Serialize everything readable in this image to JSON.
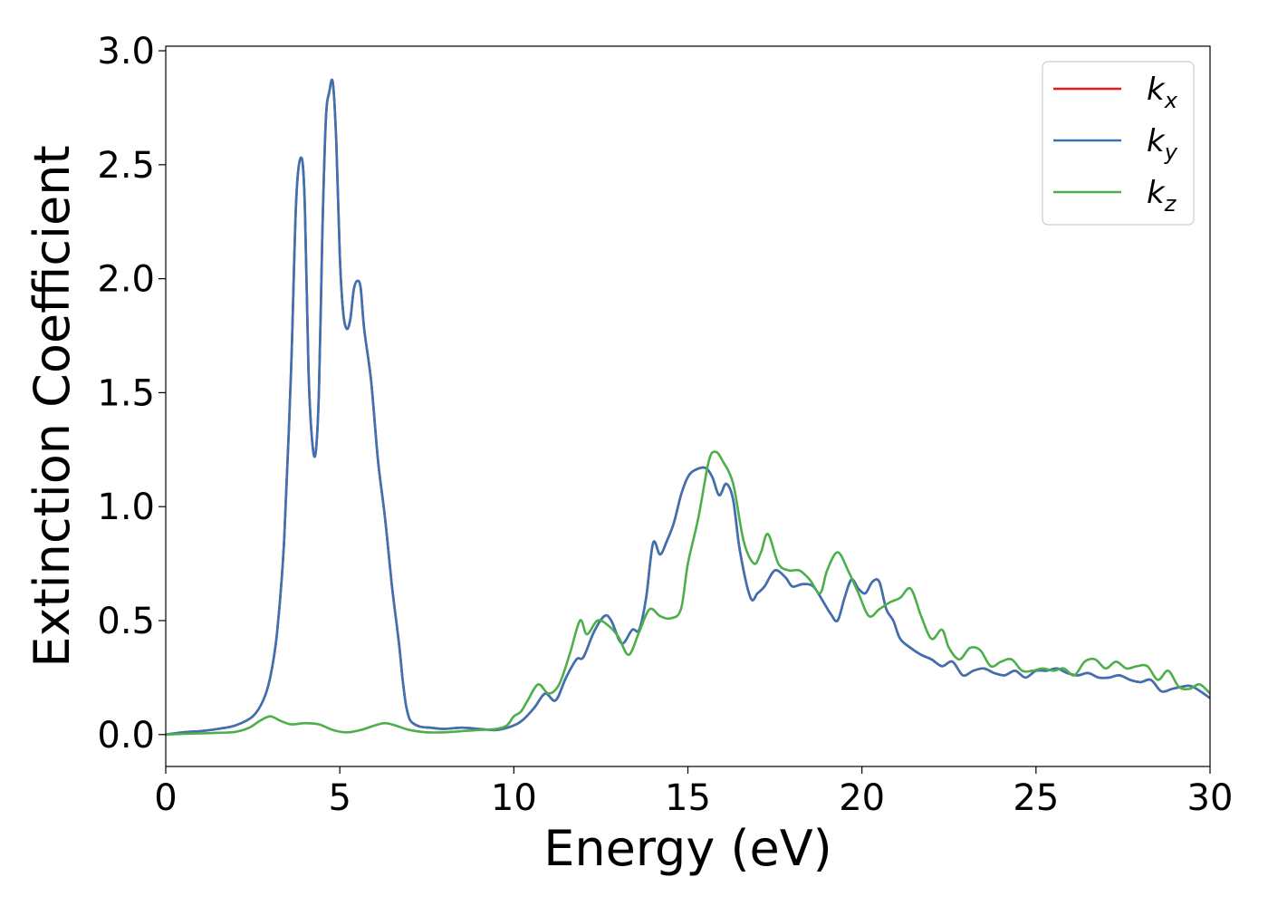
{
  "chart_data": {
    "type": "line",
    "title": "",
    "xlabel": "Energy (eV)",
    "ylabel": "Extinction Coefficient",
    "xlim": [
      0,
      30
    ],
    "ylim": [
      -0.14,
      3.02
    ],
    "xticks": [
      0,
      5,
      10,
      15,
      20,
      25,
      30
    ],
    "xtick_labels": [
      "0",
      "5",
      "10",
      "15",
      "20",
      "25",
      "30"
    ],
    "yticks": [
      0.0,
      0.5,
      1.0,
      1.5,
      2.0,
      2.5,
      3.0
    ],
    "ytick_labels": [
      "0.0",
      "0.5",
      "1.0",
      "1.5",
      "2.0",
      "2.5",
      "3.0"
    ],
    "grid": false,
    "legend_position": "top-right",
    "series": [
      {
        "name": "k",
        "subscript": "x",
        "color": "#e41a1c",
        "x": [
          0,
          0.5,
          1,
          1.5,
          2,
          2.5,
          2.8,
          3,
          3.2,
          3.4,
          3.6,
          3.75,
          3.9,
          4.0,
          4.1,
          4.2,
          4.3,
          4.4,
          4.5,
          4.6,
          4.7,
          4.8,
          4.9,
          5.0,
          5.1,
          5.2,
          5.3,
          5.4,
          5.5,
          5.6,
          5.7,
          5.9,
          6.1,
          6.3,
          6.5,
          6.7,
          6.8,
          6.9,
          7.0,
          7.1,
          7.3,
          7.6,
          8,
          8.5,
          9,
          9.5,
          10,
          10.3,
          10.6,
          10.9,
          11.2,
          11.5,
          11.8,
          12.0,
          12.3,
          12.6,
          12.8,
          13.1,
          13.4,
          13.6,
          13.8,
          14.0,
          14.2,
          14.4,
          14.6,
          14.8,
          15.0,
          15.2,
          15.5,
          15.7,
          15.9,
          16.1,
          16.3,
          16.5,
          16.8,
          17.0,
          17.2,
          17.5,
          17.8,
          18.0,
          18.3,
          18.6,
          18.9,
          19.1,
          19.3,
          19.5,
          19.7,
          19.9,
          20.1,
          20.3,
          20.5,
          20.7,
          20.9,
          21.1,
          21.4,
          21.7,
          22.0,
          22.3,
          22.6,
          22.9,
          23.2,
          23.5,
          23.8,
          24.1,
          24.4,
          24.7,
          25.0,
          25.3,
          25.6,
          25.9,
          26.2,
          26.5,
          26.8,
          27.1,
          27.4,
          27.7,
          28.0,
          28.3,
          28.6,
          28.9,
          29.2,
          29.5,
          30
        ],
        "y": [
          0,
          0.01,
          0.015,
          0.025,
          0.04,
          0.08,
          0.15,
          0.25,
          0.45,
          0.85,
          1.6,
          2.35,
          2.53,
          2.3,
          1.6,
          1.3,
          1.23,
          1.5,
          2.2,
          2.7,
          2.82,
          2.86,
          2.6,
          2.1,
          1.85,
          1.78,
          1.82,
          1.95,
          1.99,
          1.96,
          1.78,
          1.55,
          1.2,
          0.95,
          0.65,
          0.4,
          0.25,
          0.13,
          0.07,
          0.05,
          0.035,
          0.03,
          0.025,
          0.03,
          0.025,
          0.02,
          0.04,
          0.07,
          0.12,
          0.18,
          0.15,
          0.25,
          0.33,
          0.34,
          0.45,
          0.52,
          0.5,
          0.4,
          0.46,
          0.46,
          0.6,
          0.84,
          0.79,
          0.85,
          0.93,
          1.05,
          1.13,
          1.16,
          1.17,
          1.13,
          1.05,
          1.1,
          1.03,
          0.8,
          0.6,
          0.62,
          0.65,
          0.72,
          0.69,
          0.65,
          0.66,
          0.65,
          0.58,
          0.53,
          0.5,
          0.6,
          0.68,
          0.64,
          0.62,
          0.67,
          0.67,
          0.55,
          0.5,
          0.42,
          0.38,
          0.35,
          0.33,
          0.3,
          0.32,
          0.26,
          0.28,
          0.29,
          0.27,
          0.26,
          0.28,
          0.25,
          0.28,
          0.28,
          0.29,
          0.27,
          0.26,
          0.27,
          0.25,
          0.25,
          0.26,
          0.24,
          0.23,
          0.24,
          0.19,
          0.2,
          0.21,
          0.21,
          0.16
        ]
      },
      {
        "name": "k",
        "subscript": "y",
        "color": "#3b72b4",
        "x": [
          0,
          0.5,
          1,
          1.5,
          2,
          2.5,
          2.8,
          3,
          3.2,
          3.4,
          3.6,
          3.75,
          3.9,
          4.0,
          4.1,
          4.2,
          4.3,
          4.4,
          4.5,
          4.6,
          4.7,
          4.8,
          4.9,
          5.0,
          5.1,
          5.2,
          5.3,
          5.4,
          5.5,
          5.6,
          5.7,
          5.9,
          6.1,
          6.3,
          6.5,
          6.7,
          6.8,
          6.9,
          7.0,
          7.1,
          7.3,
          7.6,
          8,
          8.5,
          9,
          9.5,
          10,
          10.3,
          10.6,
          10.9,
          11.2,
          11.5,
          11.8,
          12.0,
          12.3,
          12.6,
          12.8,
          13.1,
          13.4,
          13.6,
          13.8,
          14.0,
          14.2,
          14.4,
          14.6,
          14.8,
          15.0,
          15.2,
          15.5,
          15.7,
          15.9,
          16.1,
          16.3,
          16.5,
          16.8,
          17.0,
          17.2,
          17.5,
          17.8,
          18.0,
          18.3,
          18.6,
          18.9,
          19.1,
          19.3,
          19.5,
          19.7,
          19.9,
          20.1,
          20.3,
          20.5,
          20.7,
          20.9,
          21.1,
          21.4,
          21.7,
          22.0,
          22.3,
          22.6,
          22.9,
          23.2,
          23.5,
          23.8,
          24.1,
          24.4,
          24.7,
          25.0,
          25.3,
          25.6,
          25.9,
          26.2,
          26.5,
          26.8,
          27.1,
          27.4,
          27.7,
          28.0,
          28.3,
          28.6,
          28.9,
          29.2,
          29.5,
          30
        ],
        "y": [
          0,
          0.01,
          0.015,
          0.025,
          0.04,
          0.08,
          0.15,
          0.25,
          0.45,
          0.85,
          1.6,
          2.35,
          2.53,
          2.3,
          1.6,
          1.3,
          1.23,
          1.5,
          2.2,
          2.7,
          2.82,
          2.86,
          2.6,
          2.1,
          1.85,
          1.78,
          1.82,
          1.95,
          1.99,
          1.96,
          1.78,
          1.55,
          1.2,
          0.95,
          0.65,
          0.4,
          0.25,
          0.13,
          0.07,
          0.05,
          0.035,
          0.03,
          0.025,
          0.03,
          0.025,
          0.02,
          0.04,
          0.07,
          0.12,
          0.18,
          0.15,
          0.25,
          0.33,
          0.34,
          0.45,
          0.52,
          0.5,
          0.4,
          0.46,
          0.46,
          0.6,
          0.84,
          0.79,
          0.85,
          0.93,
          1.05,
          1.13,
          1.16,
          1.17,
          1.13,
          1.05,
          1.1,
          1.03,
          0.8,
          0.6,
          0.62,
          0.65,
          0.72,
          0.69,
          0.65,
          0.66,
          0.65,
          0.58,
          0.53,
          0.5,
          0.6,
          0.68,
          0.64,
          0.62,
          0.67,
          0.67,
          0.55,
          0.5,
          0.42,
          0.38,
          0.35,
          0.33,
          0.3,
          0.32,
          0.26,
          0.28,
          0.29,
          0.27,
          0.26,
          0.28,
          0.25,
          0.28,
          0.28,
          0.29,
          0.27,
          0.26,
          0.27,
          0.25,
          0.25,
          0.26,
          0.24,
          0.23,
          0.24,
          0.19,
          0.2,
          0.21,
          0.21,
          0.16
        ]
      },
      {
        "name": "k",
        "subscript": "z",
        "color": "#4daf4a",
        "x": [
          0,
          0.5,
          1,
          1.5,
          2,
          2.4,
          2.7,
          3.0,
          3.3,
          3.6,
          4.0,
          4.4,
          4.8,
          5.2,
          5.6,
          6.0,
          6.3,
          6.6,
          7.0,
          7.5,
          8,
          8.5,
          9,
          9.5,
          9.8,
          10.0,
          10.2,
          10.4,
          10.7,
          11.0,
          11.3,
          11.6,
          11.9,
          12.1,
          12.4,
          12.7,
          13.0,
          13.3,
          13.6,
          13.9,
          14.2,
          14.5,
          14.8,
          15.0,
          15.3,
          15.6,
          15.8,
          16.0,
          16.3,
          16.6,
          16.9,
          17.1,
          17.3,
          17.6,
          17.9,
          18.2,
          18.5,
          18.8,
          19.0,
          19.3,
          19.6,
          19.9,
          20.2,
          20.5,
          20.8,
          21.1,
          21.4,
          21.7,
          22.0,
          22.3,
          22.5,
          22.8,
          23.1,
          23.4,
          23.7,
          24.0,
          24.3,
          24.6,
          24.9,
          25.2,
          25.5,
          25.8,
          26.1,
          26.4,
          26.7,
          27.0,
          27.3,
          27.6,
          27.9,
          28.2,
          28.5,
          28.8,
          29.1,
          29.4,
          29.7,
          30
        ],
        "y": [
          0,
          0.003,
          0.005,
          0.008,
          0.012,
          0.03,
          0.06,
          0.08,
          0.06,
          0.045,
          0.05,
          0.045,
          0.02,
          0.01,
          0.02,
          0.04,
          0.05,
          0.04,
          0.02,
          0.01,
          0.01,
          0.015,
          0.02,
          0.025,
          0.04,
          0.08,
          0.1,
          0.15,
          0.22,
          0.18,
          0.22,
          0.35,
          0.5,
          0.44,
          0.5,
          0.48,
          0.43,
          0.35,
          0.45,
          0.55,
          0.52,
          0.51,
          0.55,
          0.75,
          0.95,
          1.2,
          1.24,
          1.2,
          1.1,
          0.85,
          0.75,
          0.8,
          0.88,
          0.75,
          0.72,
          0.72,
          0.68,
          0.62,
          0.72,
          0.8,
          0.72,
          0.62,
          0.52,
          0.55,
          0.58,
          0.6,
          0.64,
          0.52,
          0.42,
          0.46,
          0.38,
          0.33,
          0.38,
          0.37,
          0.3,
          0.32,
          0.33,
          0.28,
          0.28,
          0.29,
          0.28,
          0.29,
          0.26,
          0.32,
          0.33,
          0.29,
          0.32,
          0.29,
          0.3,
          0.3,
          0.24,
          0.28,
          0.21,
          0.2,
          0.22,
          0.18
        ]
      }
    ]
  }
}
